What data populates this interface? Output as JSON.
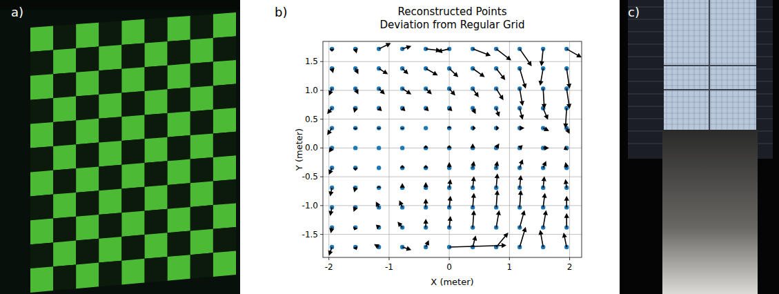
{
  "chart_data": {
    "type": "quiver",
    "panel_label": "b)",
    "title": "Reconstructed Points",
    "subtitle": "Deviation from Regular Grid",
    "x_label": "X (meter)",
    "y_label": "Y (meter)",
    "xlim": [
      -2.1,
      2.2
    ],
    "ylim": [
      -1.9,
      1.85
    ],
    "xticks": [
      -2,
      -1,
      0,
      1,
      2
    ],
    "yticks": [
      -1.5,
      {
        "value": -1,
        "label": "-1.0"
      },
      -0.5,
      {
        "value": 0,
        "label": "0.0"
      },
      0.5,
      {
        "value": 1,
        "label": "1.0"
      },
      1.5
    ],
    "grid": true,
    "color": "#1f77b4",
    "x": [
      -1.95,
      -1.56,
      -1.17,
      -0.78,
      -0.39,
      0,
      0.39,
      0.78,
      1.17,
      1.56,
      1.95
    ],
    "y": [
      1.72,
      1.38,
      1.03,
      0.69,
      0.345,
      0,
      -0.345,
      -0.69,
      -1.03,
      -1.38,
      -1.72
    ],
    "u": [
      [
        0,
        0.02,
        0.2,
        0.15,
        0.25,
        -0.2,
        0.3,
        0.25,
        0.2,
        -0.03,
        0.25
      ],
      [
        0.02,
        0.05,
        0.15,
        0.1,
        0.2,
        0.15,
        0.2,
        0.15,
        0.1,
        -0.05,
        0.05
      ],
      [
        -0.05,
        0.05,
        0.1,
        0.15,
        0.1,
        0.1,
        0.1,
        0.12,
        0.05,
        0.02,
        0.05
      ],
      [
        -0.08,
        -0.02,
        0.05,
        0.05,
        0.05,
        0.05,
        0.05,
        0.05,
        0.05,
        0.08,
        -0.02
      ],
      [
        -0.08,
        0,
        0,
        0,
        0,
        0,
        0.05,
        0.05,
        0.08,
        0.1,
        0.05
      ],
      [
        -0.05,
        0,
        0,
        0,
        0,
        0,
        0,
        0.05,
        0.05,
        0.1,
        -0.05
      ],
      [
        -0.05,
        0,
        0,
        0,
        0,
        0,
        0.02,
        0.02,
        0.05,
        0.05,
        -0.02
      ],
      [
        -0.03,
        -0.02,
        0,
        0,
        0,
        0.02,
        0.02,
        0.02,
        0.02,
        0.02,
        -0.02
      ],
      [
        -0.03,
        -0.03,
        -0.05,
        -0.05,
        0,
        0.02,
        0.02,
        0.02,
        0.02,
        0.03,
        0
      ],
      [
        -0.02,
        -0.02,
        -0.05,
        -0.08,
        0,
        0.02,
        0.02,
        0.05,
        0.08,
        0.05,
        0
      ],
      [
        -0.05,
        0.02,
        -0.08,
        0.15,
        0.05,
        0.95,
        0.05,
        0.2,
        0.1,
        -0.05,
        -0.05
      ]
    ],
    "v": [
      [
        -0.05,
        -0.08,
        0.1,
        0.05,
        -0.03,
        -0.05,
        -0.12,
        -0.2,
        -0.3,
        -0.3,
        -0.15
      ],
      [
        -0.08,
        -0.1,
        -0.1,
        -0.1,
        -0.12,
        -0.15,
        -0.15,
        -0.2,
        -0.35,
        -0.3,
        -0.35
      ],
      [
        -0.12,
        -0.1,
        -0.1,
        -0.1,
        -0.1,
        -0.12,
        -0.15,
        -0.2,
        -0.3,
        -0.35,
        -0.35
      ],
      [
        -0.1,
        -0.08,
        -0.05,
        -0.05,
        -0.05,
        -0.05,
        -0.1,
        -0.15,
        -0.2,
        -0.2,
        -0.35
      ],
      [
        -0.12,
        -0.03,
        -0.02,
        -0.02,
        0,
        0.03,
        0,
        0,
        0,
        -0.05,
        -0.1
      ],
      [
        -0.08,
        0,
        0,
        0,
        0.05,
        0.05,
        0.08,
        0.08,
        0.05,
        0,
        -0.03
      ],
      [
        -0.12,
        -0.05,
        0,
        0.05,
        0.05,
        0.1,
        0.12,
        0.12,
        0.15,
        0.12,
        0.1
      ],
      [
        -0.15,
        -0.08,
        0.03,
        0.08,
        0.1,
        0.15,
        0.2,
        0.25,
        0.22,
        0.2,
        0.15
      ],
      [
        -0.15,
        -0.08,
        0.1,
        0.12,
        0.15,
        0.2,
        0.25,
        0.3,
        0.3,
        0.25,
        0.2
      ],
      [
        -0.1,
        -0.05,
        0.05,
        0.1,
        0.15,
        0.2,
        0.3,
        0.3,
        0.3,
        0.3,
        0.25
      ],
      [
        -0.15,
        -0.05,
        0.05,
        -0.05,
        0.12,
        0.03,
        0.2,
        0.25,
        0.35,
        0.3,
        0.25
      ]
    ]
  },
  "photos": [
    {
      "label": "a)"
    },
    {
      "label": "c)"
    }
  ]
}
